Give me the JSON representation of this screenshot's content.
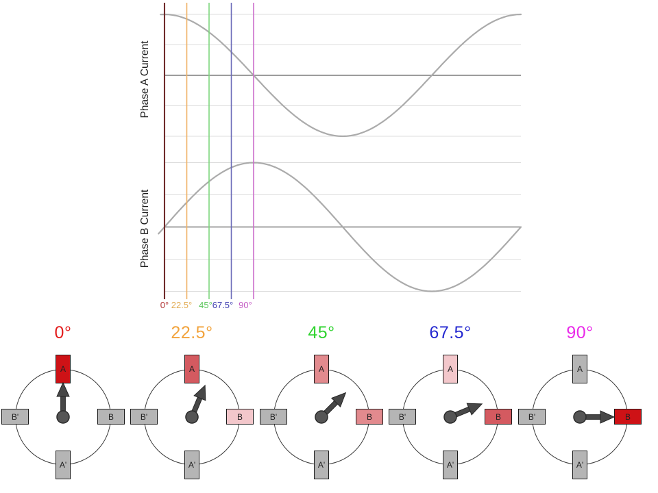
{
  "charts": {
    "phase_a_label": "Phase A Current",
    "phase_b_label": "Phase B Current",
    "x_ticks": [
      {
        "text": "0°",
        "color": "#b23434"
      },
      {
        "text": "22.5°",
        "color": "#e2ac55"
      },
      {
        "text": "45°",
        "color": "#5cc65c"
      },
      {
        "text": "67.5°",
        "color": "#4040b0"
      },
      {
        "text": "90°",
        "color": "#c45cc4"
      }
    ],
    "marker_line_colors": [
      "#6f2b2b",
      "#f0b266",
      "#7ed67e",
      "#6a6ab8",
      "#cc6ecc"
    ],
    "curve_color": "#ababab",
    "zero_line_color": "#7c7c7c",
    "grid_color": "#dcdcdc"
  },
  "chart_data": [
    {
      "type": "line",
      "ylabel": "Phase A Current",
      "xlabel": "",
      "wave": "cos",
      "amplitude": 1,
      "x_unit": "degrees",
      "x_range": [
        0,
        360
      ],
      "x": [
        0,
        22.5,
        45,
        67.5,
        90,
        135,
        180,
        225,
        270,
        315,
        360
      ],
      "y": [
        1,
        0.924,
        0.707,
        0.383,
        0,
        -0.707,
        -1,
        -0.707,
        0,
        0.707,
        1
      ],
      "marker_lines_deg": [
        0,
        22.5,
        45,
        67.5,
        90
      ],
      "grid": true,
      "legend": false
    },
    {
      "type": "line",
      "ylabel": "Phase B Current",
      "xlabel": "",
      "wave": "sin",
      "amplitude": 1,
      "x_unit": "degrees",
      "x_range": [
        0,
        360
      ],
      "x": [
        0,
        22.5,
        45,
        67.5,
        90,
        135,
        180,
        225,
        270,
        315,
        360
      ],
      "y": [
        0,
        0.383,
        0.707,
        0.924,
        1,
        0.707,
        0,
        -0.707,
        -1,
        -0.707,
        0
      ],
      "marker_lines_deg": [
        0,
        22.5,
        45,
        67.5,
        90
      ],
      "tick_labels": [
        "0°",
        "22.5°",
        "45°",
        "67.5°",
        "90°"
      ],
      "grid": true,
      "legend": false
    }
  ],
  "stators": [
    {
      "label": "0°",
      "label_color": "#e31b1b",
      "arrow_angle": 0,
      "poles": {
        "A": {
          "label": "A",
          "color": "#ce1216"
        },
        "B": {
          "label": "B",
          "color": "#b5b5b5"
        },
        "Bp": {
          "label": "B'",
          "color": "#b5b5b5"
        },
        "Ap": {
          "label": "A'",
          "color": "#b5b5b5"
        }
      }
    },
    {
      "label": "22.5°",
      "label_color": "#f2a33c",
      "arrow_angle": 22.5,
      "poles": {
        "A": {
          "label": "A",
          "color": "#d45a60"
        },
        "B": {
          "label": "B",
          "color": "#f3c7cb"
        },
        "Bp": {
          "label": "B'",
          "color": "#b5b5b5"
        },
        "Ap": {
          "label": "A'",
          "color": "#b5b5b5"
        }
      }
    },
    {
      "label": "45°",
      "label_color": "#2fd32f",
      "arrow_angle": 45,
      "poles": {
        "A": {
          "label": "A",
          "color": "#e28a8e"
        },
        "B": {
          "label": "B",
          "color": "#e28a8e"
        },
        "Bp": {
          "label": "B'",
          "color": "#b5b5b5"
        },
        "Ap": {
          "label": "A'",
          "color": "#b5b5b5"
        }
      }
    },
    {
      "label": "67.5°",
      "label_color": "#2428d0",
      "arrow_angle": 67.5,
      "poles": {
        "A": {
          "label": "A",
          "color": "#f3c7cb"
        },
        "B": {
          "label": "B",
          "color": "#d45a60"
        },
        "Bp": {
          "label": "B'",
          "color": "#b5b5b5"
        },
        "Ap": {
          "label": "A'",
          "color": "#b5b5b5"
        }
      }
    },
    {
      "label": "90°",
      "label_color": "#e92ae9",
      "arrow_angle": 90,
      "poles": {
        "A": {
          "label": "A",
          "color": "#b5b5b5"
        },
        "B": {
          "label": "B",
          "color": "#ce1216"
        },
        "Bp": {
          "label": "B'",
          "color": "#b5b5b5"
        },
        "Ap": {
          "label": "A'",
          "color": "#b5b5b5"
        }
      }
    }
  ]
}
